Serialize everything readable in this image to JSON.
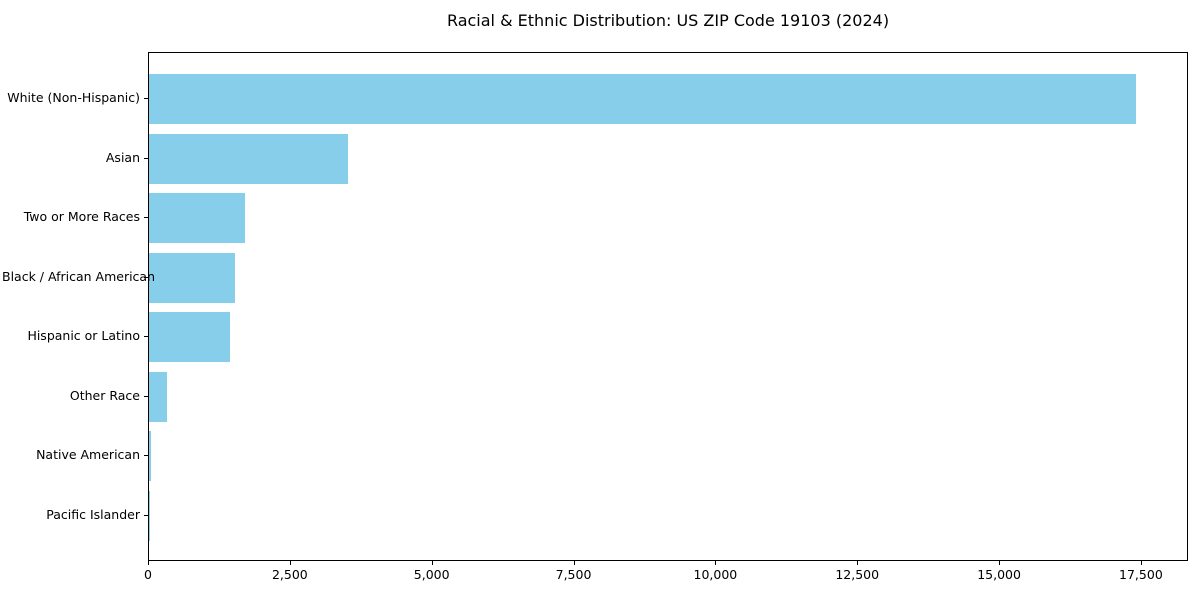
{
  "figure": {
    "background": "#ffffff"
  },
  "chart_data": {
    "type": "bar",
    "orientation": "horizontal",
    "title": "Racial & Ethnic Distribution: US ZIP Code 19103 (2024)",
    "categories": [
      "White (Non-Hispanic)",
      "Asian",
      "Two or More Races",
      "Black / African American",
      "Hispanic or Latino",
      "Other Race",
      "Native American",
      "Pacific Islander"
    ],
    "values": [
      17400,
      3500,
      1690,
      1520,
      1430,
      320,
      30,
      10
    ],
    "xlabel": "",
    "ylabel": "",
    "xlim": [
      0,
      18330
    ],
    "xticks": [
      0,
      2500,
      5000,
      7500,
      10000,
      12500,
      15000,
      17500
    ],
    "xtick_labels": [
      "0",
      "2,500",
      "5,000",
      "7,500",
      "10,000",
      "12,500",
      "15,000",
      "17,500"
    ],
    "bar_color": "#87CEEB",
    "axis_color": "#000000",
    "text_color": "#000000",
    "grid": false,
    "legend": "none"
  }
}
